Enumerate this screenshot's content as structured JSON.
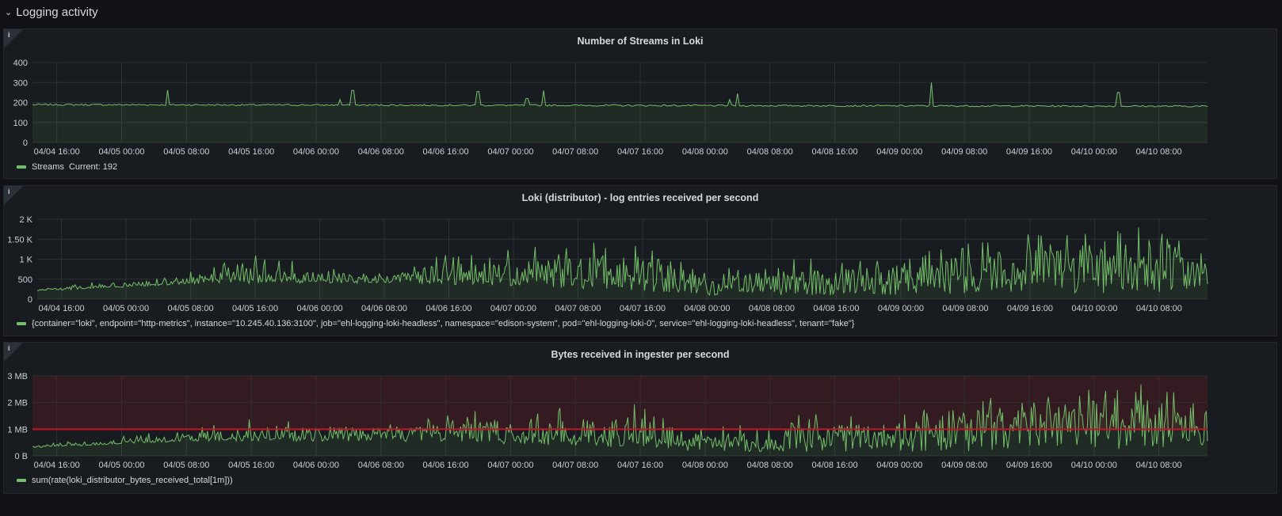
{
  "row": {
    "title": "Logging activity"
  },
  "x_ticks": [
    "04/04 16:00",
    "04/05 00:00",
    "04/05 08:00",
    "04/05 16:00",
    "04/06 00:00",
    "04/06 08:00",
    "04/06 16:00",
    "04/07 00:00",
    "04/07 08:00",
    "04/07 16:00",
    "04/08 00:00",
    "04/08 08:00",
    "04/08 16:00",
    "04/09 00:00",
    "04/09 08:00",
    "04/09 16:00",
    "04/10 00:00",
    "04/10 08:00"
  ],
  "colors": {
    "series": "#73bf69",
    "threshold": "#c4162a",
    "grid": "#2c3235",
    "panel_bg": "#181b1f",
    "page_bg": "#111217"
  },
  "chart_data": [
    {
      "type": "line",
      "title": "Number of Streams in Loki",
      "info_icon": "info-icon",
      "yticks": [
        "0",
        "100",
        "200",
        "300",
        "400"
      ],
      "ylim": [
        0,
        400
      ],
      "xlim": [
        "04/04 13:00",
        "04/10 14:00"
      ],
      "grid": true,
      "series": [
        {
          "name": "Streams",
          "current_label": "Current: 192",
          "baseline": 190,
          "points": [
            {
              "x": "04/04 13:00",
              "y": 190
            },
            {
              "x": "04/04 18:00",
              "y": 188
            },
            {
              "x": "04/04 23:00",
              "y": 191
            },
            {
              "x": "04/05 04:00",
              "y": 189
            },
            {
              "x": "04/05 05:45",
              "y": 262
            },
            {
              "x": "04/05 12:00",
              "y": 188
            },
            {
              "x": "04/05 20:00",
              "y": 187
            },
            {
              "x": "04/06 03:00",
              "y": 189
            },
            {
              "x": "04/06 03:00",
              "y": 215
            },
            {
              "x": "04/06 04:30",
              "y": 260
            },
            {
              "x": "04/06 12:00",
              "y": 186
            },
            {
              "x": "04/06 19:00",
              "y": 185
            },
            {
              "x": "04/06 20:00",
              "y": 255
            },
            {
              "x": "04/07 02:00",
              "y": 220
            },
            {
              "x": "04/07 04:00",
              "y": 260
            },
            {
              "x": "04/07 12:00",
              "y": 183
            },
            {
              "x": "04/07 20:00",
              "y": 182
            },
            {
              "x": "04/08 03:00",
              "y": 215
            },
            {
              "x": "04/08 04:00",
              "y": 245
            },
            {
              "x": "04/08 12:00",
              "y": 182
            },
            {
              "x": "04/08 20:00",
              "y": 181
            },
            {
              "x": "04/09 04:00",
              "y": 300
            },
            {
              "x": "04/09 12:00",
              "y": 183
            },
            {
              "x": "04/09 20:00",
              "y": 183
            },
            {
              "x": "04/10 03:00",
              "y": 250
            },
            {
              "x": "04/10 08:00",
              "y": 188
            },
            {
              "x": "04/10 14:00",
              "y": 192
            }
          ]
        }
      ]
    },
    {
      "type": "line",
      "title": "Loki (distributor) - log entries received per second",
      "info_icon": "info-icon",
      "yticks": [
        "0",
        "500",
        "1 K",
        "1.50 K",
        "2 K"
      ],
      "ylim": [
        0,
        2000
      ],
      "xlim": [
        "04/04 13:00",
        "04/10 14:00"
      ],
      "grid": true,
      "series": [
        {
          "name": "{container=\"loki\", endpoint=\"http-metrics\", instance=\"10.245.40.136:3100\", job=\"ehl-logging-loki-headless\", namespace=\"edison-system\", pod=\"ehl-logging-loki-0\", service=\"ehl-logging-loki-headless\", tenant=\"fake\"}",
          "envelope": [
            {
              "x": "04/04 13:00",
              "low": 200,
              "base": 220,
              "high": 260
            },
            {
              "x": "04/05 08:00",
              "low": 380,
              "base": 420,
              "high": 700
            },
            {
              "x": "04/05 16:00",
              "low": 400,
              "base": 480,
              "high": 1100
            },
            {
              "x": "04/06 08:00",
              "low": 400,
              "base": 520,
              "high": 700
            },
            {
              "x": "04/06 16:00",
              "low": 350,
              "base": 500,
              "high": 1150
            },
            {
              "x": "04/07 08:00",
              "low": 250,
              "base": 550,
              "high": 1400
            },
            {
              "x": "04/07 16:00",
              "low": 200,
              "base": 550,
              "high": 1500
            },
            {
              "x": "04/08 00:00",
              "low": 100,
              "base": 250,
              "high": 700
            },
            {
              "x": "04/08 08:00",
              "low": 100,
              "base": 300,
              "high": 1000
            },
            {
              "x": "04/09 00:00",
              "low": 100,
              "base": 400,
              "high": 1100
            },
            {
              "x": "04/09 16:00",
              "low": 150,
              "base": 700,
              "high": 1700
            },
            {
              "x": "04/10 08:00",
              "low": 150,
              "base": 800,
              "high": 1850
            },
            {
              "x": "04/10 14:00",
              "low": 200,
              "base": 600,
              "high": 1050
            }
          ]
        }
      ]
    },
    {
      "type": "line",
      "title": "Bytes received in ingester per second",
      "info_icon": "info-icon",
      "yticks": [
        "0 B",
        "1 MB",
        "2 MB",
        "3 MB"
      ],
      "ylim": [
        0,
        3
      ],
      "yunit": "MB",
      "xlim": [
        "04/04 13:00",
        "04/10 14:00"
      ],
      "grid": true,
      "threshold": {
        "value": 1,
        "color": "#c4162a",
        "region_above": true
      },
      "series": [
        {
          "name": "sum(rate(loki_distributor_bytes_received_total[1m]))",
          "envelope": [
            {
              "x": "04/04 13:00",
              "low": 0.3,
              "base": 0.33,
              "high": 0.4
            },
            {
              "x": "04/05 08:00",
              "low": 0.55,
              "base": 0.6,
              "high": 1.0
            },
            {
              "x": "04/05 16:00",
              "low": 0.55,
              "base": 0.7,
              "high": 1.4
            },
            {
              "x": "04/06 08:00",
              "low": 0.55,
              "base": 0.8,
              "high": 1.1
            },
            {
              "x": "04/06 16:00",
              "low": 0.5,
              "base": 0.75,
              "high": 1.6
            },
            {
              "x": "04/07 08:00",
              "low": 0.35,
              "base": 0.8,
              "high": 2.0
            },
            {
              "x": "04/07 16:00",
              "low": 0.3,
              "base": 0.8,
              "high": 2.1
            },
            {
              "x": "04/08 00:00",
              "low": 0.15,
              "base": 0.35,
              "high": 1.0
            },
            {
              "x": "04/08 08:00",
              "low": 0.15,
              "base": 0.45,
              "high": 1.5
            },
            {
              "x": "04/09 00:00",
              "low": 0.15,
              "base": 0.6,
              "high": 1.7
            },
            {
              "x": "04/09 16:00",
              "low": 0.2,
              "base": 1.1,
              "high": 2.6
            },
            {
              "x": "04/10 08:00",
              "low": 0.2,
              "base": 1.2,
              "high": 2.8
            },
            {
              "x": "04/10 14:00",
              "low": 0.3,
              "base": 0.9,
              "high": 1.7
            }
          ]
        }
      ]
    }
  ]
}
